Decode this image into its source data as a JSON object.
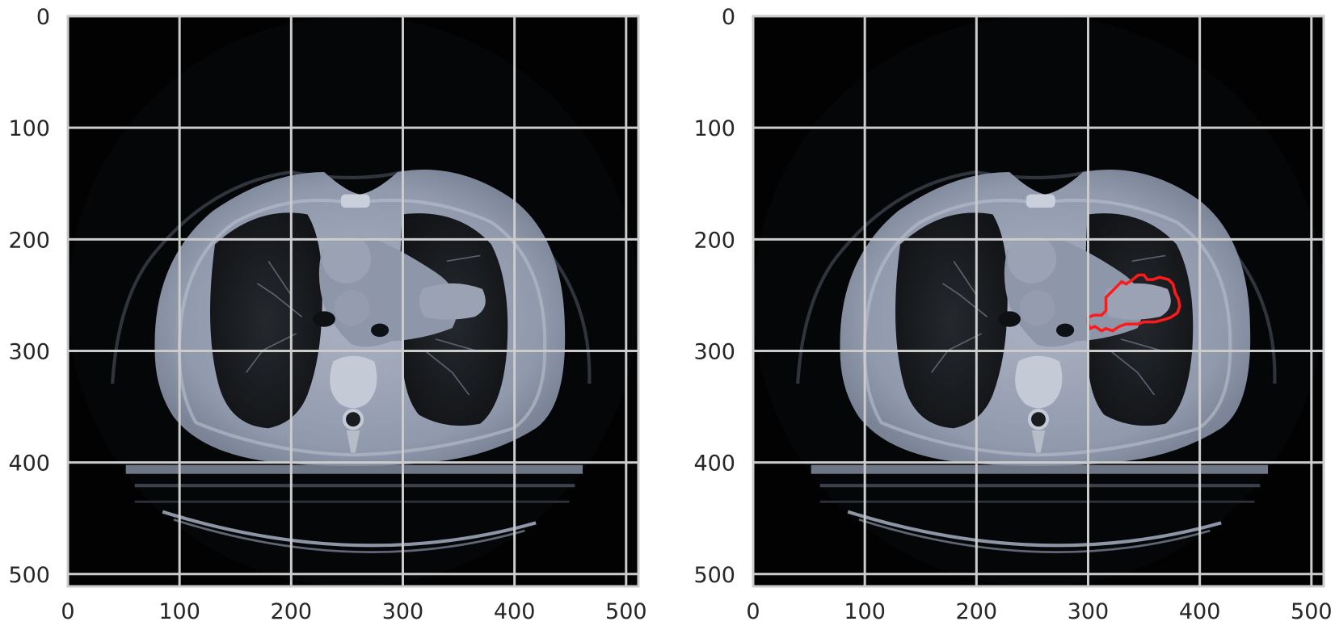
{
  "panels": [
    {
      "id": "ct-slice-raw",
      "axis": {
        "xlim": [
          0,
          511
        ],
        "ylim": [
          511,
          0
        ],
        "xticks": [
          0,
          100,
          200,
          300,
          400,
          500
        ],
        "yticks": [
          0,
          100,
          200,
          300,
          400,
          500
        ],
        "grid": true
      },
      "image": {
        "description_tag": "ct-axial-chest-slice",
        "colormap": "bone"
      },
      "contours": []
    },
    {
      "id": "ct-slice-with-contour",
      "axis": {
        "xlim": [
          0,
          511
        ],
        "ylim": [
          511,
          0
        ],
        "xticks": [
          0,
          100,
          200,
          300,
          400,
          500
        ],
        "yticks": [
          0,
          100,
          200,
          300,
          400,
          500
        ],
        "grid": true
      },
      "image": {
        "description_tag": "ct-axial-chest-slice",
        "colormap": "bone"
      },
      "contours": [
        {
          "color": "#ff1a1a",
          "points": [
            [
              300,
              270
            ],
            [
              305,
              268
            ],
            [
              312,
              268
            ],
            [
              316,
              264
            ],
            [
              316,
              252
            ],
            [
              322,
              246
            ],
            [
              326,
              242
            ],
            [
              330,
              238
            ],
            [
              334,
              240
            ],
            [
              340,
              236
            ],
            [
              345,
              232
            ],
            [
              350,
              232
            ],
            [
              353,
              236
            ],
            [
              358,
              236
            ],
            [
              364,
              234
            ],
            [
              372,
              236
            ],
            [
              376,
              240
            ],
            [
              378,
              248
            ],
            [
              381,
              254
            ],
            [
              382,
              260
            ],
            [
              380,
              266
            ],
            [
              374,
              270
            ],
            [
              368,
              272
            ],
            [
              360,
              274
            ],
            [
              350,
              274
            ],
            [
              344,
              276
            ],
            [
              334,
              276
            ],
            [
              328,
              278
            ],
            [
              322,
              282
            ],
            [
              316,
              280
            ],
            [
              312,
              282
            ],
            [
              306,
              278
            ],
            [
              302,
              280
            ],
            [
              300,
              276
            ]
          ]
        }
      ]
    }
  ]
}
